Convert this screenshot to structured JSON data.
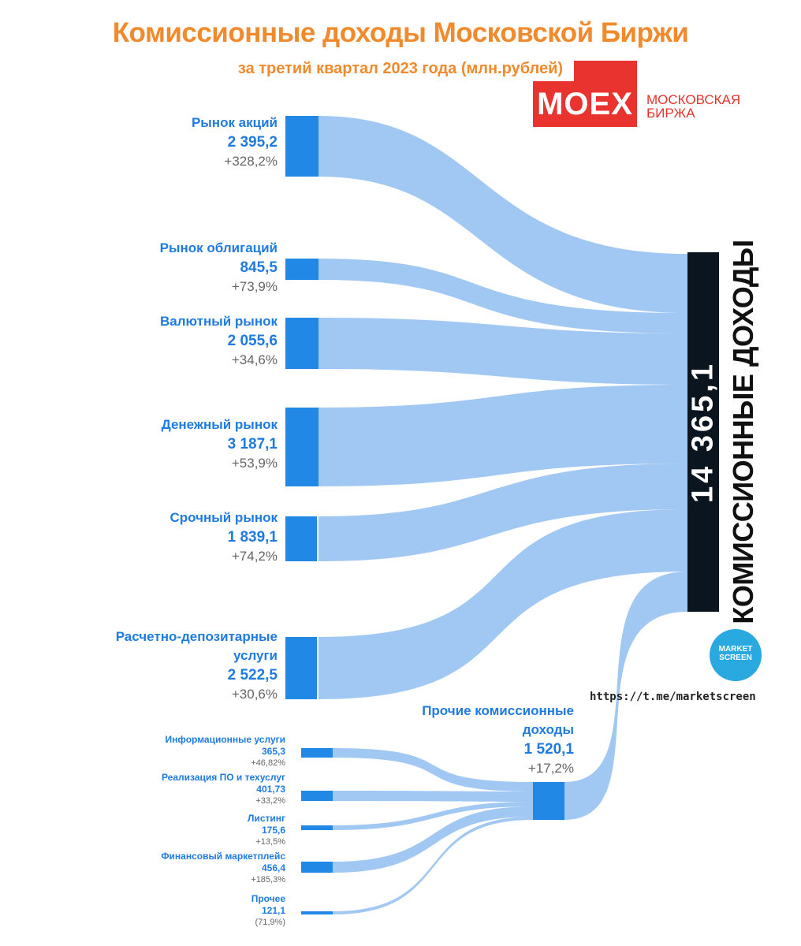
{
  "header": {
    "title": "Комиссионные доходы Московской Биржи",
    "subtitle": "за третий квартал 2023 года (млн.рублей)"
  },
  "brand": {
    "logo_text": "MOEX",
    "name_line1": "МОСКОВСКАЯ",
    "name_line2": "БИРЖА",
    "color": "#e8332f"
  },
  "colors": {
    "flow": "#a0c8f2",
    "node": "#2288e6",
    "total_bar": "#0a1520",
    "label": "#1f7be0",
    "change": "#666666",
    "title": "#f08a2c"
  },
  "total": {
    "value": "14 365,1",
    "label": "КОМИССИОННЫЕ ДОХОДЫ"
  },
  "sources": [
    {
      "name": "Рынок акций",
      "value": "2 395,2",
      "change": "+328,2%"
    },
    {
      "name": "Рынок облигаций",
      "value": "845,5",
      "change": "+73,9%"
    },
    {
      "name": "Валютный рынок",
      "value": "2 055,6",
      "change": "+34,6%"
    },
    {
      "name": "Денежный рынок",
      "value": "3 187,1",
      "change": "+53,9%"
    },
    {
      "name": "Срочный рынок",
      "value": "1 839,1",
      "change": "+74,2%"
    },
    {
      "name_line1": "Расчетно-депозитарные",
      "name_line2": "услуги",
      "value": "2 522,5",
      "change": "+30,6%"
    }
  ],
  "other": {
    "name_line1": "Прочие комиссионные",
    "name_line2": "доходы",
    "value": "1 520,1",
    "change": "+17,2%"
  },
  "sub_sources": [
    {
      "name": "Информационные услуги",
      "value": "365,3",
      "change": "+46,82%"
    },
    {
      "name": "Реализация ПО и техуслуг",
      "value": "401,73",
      "change": "+33,2%"
    },
    {
      "name": "Листинг",
      "value": "175,6",
      "change": "+13,5%"
    },
    {
      "name": "Финансовый маркетплейс",
      "value": "456,4",
      "change": "+185,3%"
    },
    {
      "name": "Прочее",
      "value": "121,1",
      "change": "(71,9%)"
    }
  ],
  "watermark": {
    "badge_line1": "MARKET",
    "badge_line2": "SCREEN",
    "link": "https://t.me/marketscreen"
  }
}
